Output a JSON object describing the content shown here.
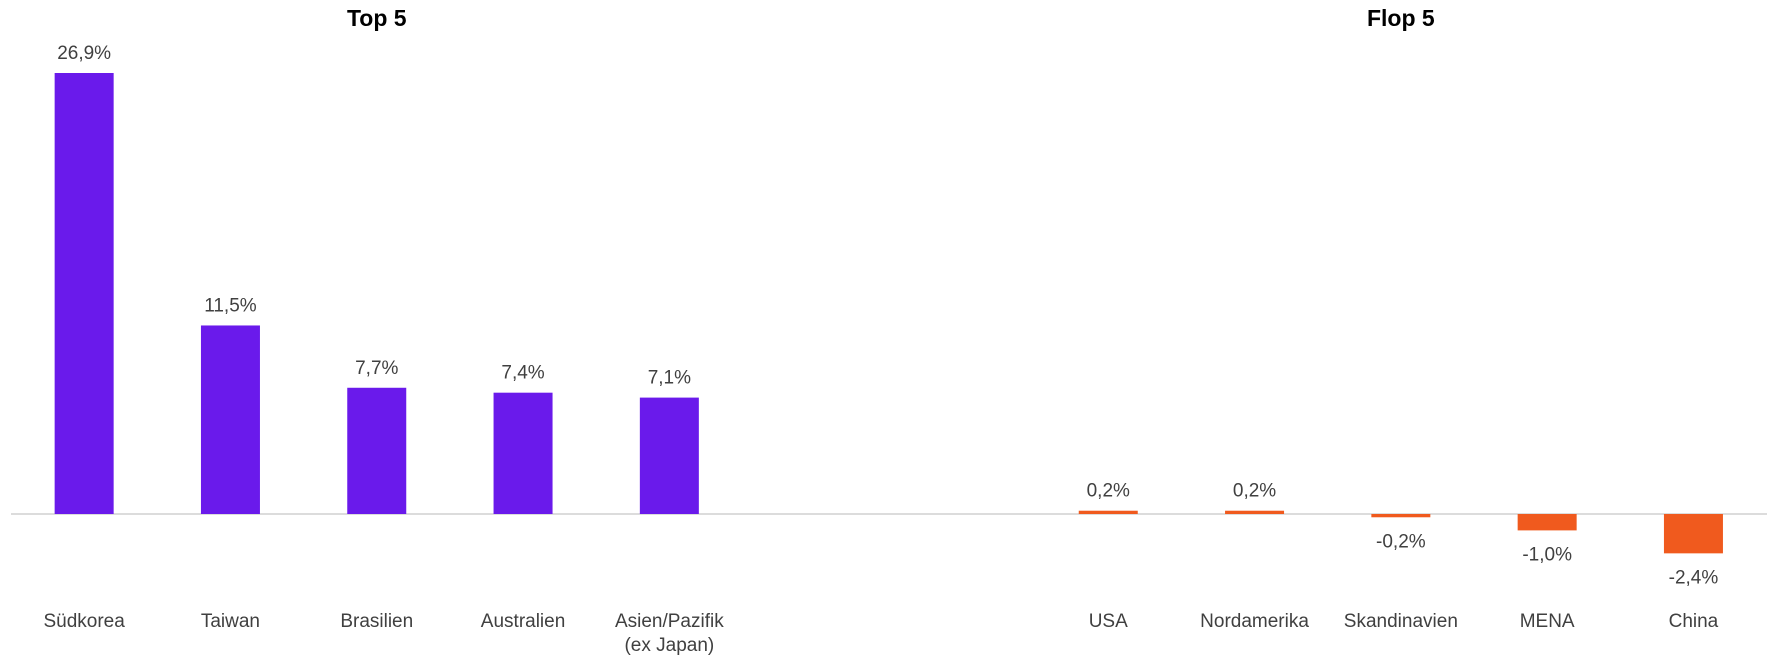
{
  "chart_data": [
    {
      "type": "bar",
      "title": "Top 5",
      "categories": [
        "Südkorea",
        "Taiwan",
        "Brasilien",
        "Australien",
        "Asien/Pazifik\n(ex Japan)"
      ],
      "values": [
        26.9,
        11.5,
        7.7,
        7.4,
        7.1
      ],
      "value_labels": [
        "26,9%",
        "11,5%",
        "7,7%",
        "7,4%",
        "7,1%"
      ],
      "color": "#6a1aeb"
    },
    {
      "type": "bar",
      "title": "Flop 5",
      "categories": [
        "USA",
        "Nordamerika",
        "Skandinavien",
        "MENA",
        "China"
      ],
      "values": [
        0.2,
        0.2,
        -0.2,
        -1.0,
        -2.4
      ],
      "value_labels": [
        "0,2%",
        "0,2%",
        "-0,2%",
        "-1,0%",
        "-2,4%"
      ],
      "color": "#f05a1e"
    }
  ]
}
